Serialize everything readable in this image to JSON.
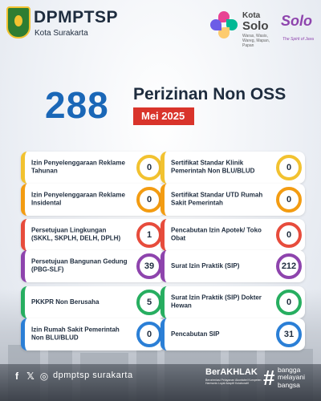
{
  "header": {
    "brand_name": "DPMPTSP",
    "brand_sub": "Kota Surakarta",
    "kota_solo_top": "Kota",
    "kota_solo_main": "Solo",
    "kota_solo_tag": "Waras, Wasis, Wareg, Mapan, Papan",
    "solo_script": "Solo",
    "solo_tag": "The Spirit of Java"
  },
  "summary": {
    "total": "288",
    "title": "Perizinan Non OSS",
    "period": "Mei 2025"
  },
  "colors": {
    "title_blue": "#1a67b7",
    "period_red": "#d9342b",
    "text_dark": "#1e2c3e"
  },
  "cards": [
    {
      "label": "Izin Penyelenggaraan Reklame Tahunan",
      "value": "0",
      "color": "#f2c230",
      "col": 0,
      "row": 0
    },
    {
      "label": "Izin Penyelenggaraan Reklame Insidental",
      "value": "0",
      "color": "#f39c12",
      "col": 0,
      "row": 1
    },
    {
      "label": "Persetujuan Lingkungan (SKKL, SKPLH, DELH, DPLH)",
      "value": "1",
      "color": "#e74c3c",
      "col": 0,
      "row": 2
    },
    {
      "label": "Persetujuan Bangunan Gedung (PBG-SLF)",
      "value": "39",
      "color": "#8e44ad",
      "col": 0,
      "row": 3
    },
    {
      "label": "PKKPR Non Berusaha",
      "value": "5",
      "color": "#27ae60",
      "col": 0,
      "row": 4
    },
    {
      "label": "Izin Rumah Sakit Pemerintah Non BLU/BLUD",
      "value": "0",
      "color": "#2b7fd6",
      "col": 0,
      "row": 5
    },
    {
      "label": "Sertifikat Standar Klinik Pemerintah Non BLU/BLUD",
      "value": "0",
      "color": "#f2c230",
      "col": 1,
      "row": 0
    },
    {
      "label": "Sertifikat Standar UTD Rumah Sakit Pemerintah",
      "value": "0",
      "color": "#f39c12",
      "col": 1,
      "row": 1
    },
    {
      "label": "Pencabutan Izin Apotek/ Toko Obat",
      "value": "0",
      "color": "#e74c3c",
      "col": 1,
      "row": 2
    },
    {
      "label": "Surat Izin Praktik (SIP)",
      "value": "212",
      "color": "#8e44ad",
      "col": 1,
      "row": 3
    },
    {
      "label": "Surat Izin Praktik (SIP) Dokter Hewan",
      "value": "0",
      "color": "#27ae60",
      "col": 1,
      "row": 4
    },
    {
      "label": "Pencabutan SIP",
      "value": "31",
      "color": "#2b7fd6",
      "col": 1,
      "row": 5
    }
  ],
  "footer": {
    "facebook_icon": "f",
    "x_icon": "𝕏",
    "instagram_icon": "◎",
    "handle": "dpmptsp surakarta",
    "berakhlak": "BerAKHLAK",
    "berakhlak_sub": "Berorientasi Pelayanan Akuntabel Kompeten Harmonis Loyal Adaptif Kolaboratif",
    "hash": "#",
    "bangga_line1": "bangga",
    "bangga_line2": "melayani",
    "bangga_line3": "bangsa"
  }
}
